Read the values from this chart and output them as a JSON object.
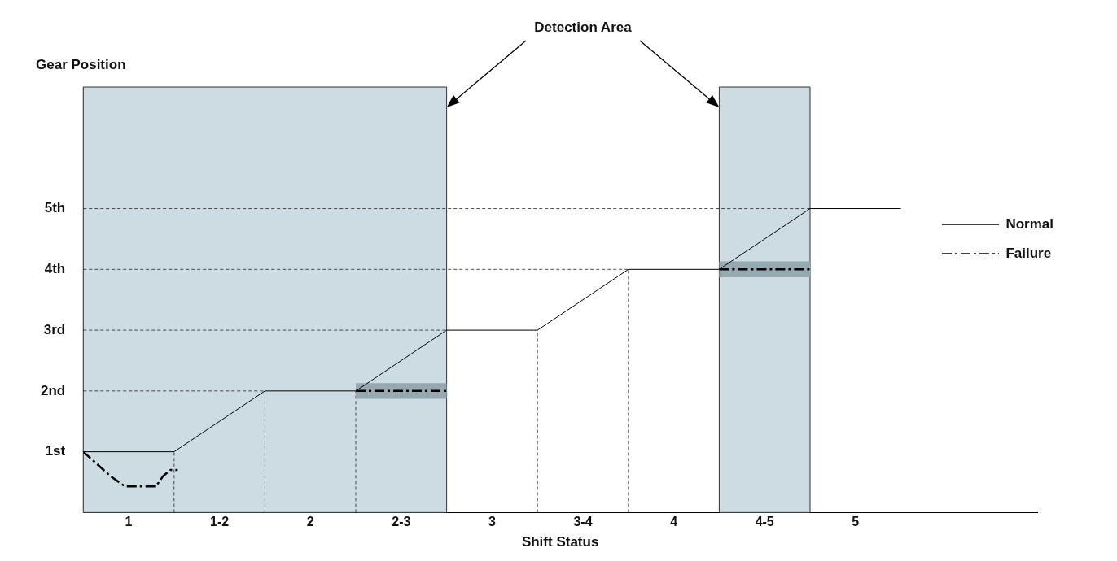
{
  "chart_data": {
    "type": "line",
    "xlabel": "Shift Status",
    "ylabel": "Gear Position",
    "annotations": [
      "Detection Area"
    ],
    "xlim": [
      0.75,
      6
    ],
    "xticks": [
      1,
      {
        "value": 1.5,
        "label": "1-2"
      },
      2,
      {
        "value": 2.5,
        "label": "2-3"
      },
      3,
      {
        "value": 3.5,
        "label": "3-4"
      },
      4,
      {
        "value": 4.5,
        "label": "4-5"
      },
      5
    ],
    "ylim": [
      0,
      7
    ],
    "yticks": [
      {
        "value": 1,
        "label": "1st"
      },
      {
        "value": 2,
        "label": "2nd"
      },
      {
        "value": 3,
        "label": "3rd"
      },
      {
        "value": 4,
        "label": "4th"
      },
      {
        "value": 5,
        "label": "5th"
      }
    ],
    "legend": "right",
    "bands": [
      {
        "axis": "x",
        "from": 0.75,
        "to": 2.75,
        "color": "#cddbe2"
      },
      {
        "axis": "x",
        "from": 4.25,
        "to": 4.75,
        "color": "#cddbe2"
      }
    ],
    "ref_lines": [
      {
        "axis": "y",
        "value": 2,
        "line_style": "dashed"
      },
      {
        "axis": "y",
        "value": 3,
        "line_style": "dashed"
      },
      {
        "axis": "y",
        "value": 4,
        "line_style": "dashed"
      },
      {
        "axis": "y",
        "value": 5,
        "line_style": "dashed"
      },
      {
        "axis": "x",
        "value": 1.25,
        "line_style": "dashed"
      },
      {
        "axis": "x",
        "value": 1.75,
        "line_style": "dashed"
      },
      {
        "axis": "x",
        "value": 2.25,
        "line_style": "dashed"
      },
      {
        "axis": "x",
        "value": 3.25,
        "line_style": "dashed"
      },
      {
        "axis": "x",
        "value": 3.75,
        "line_style": "dashed"
      }
    ],
    "series": [
      {
        "name": "Normal",
        "color": "#000000",
        "line_style": "solid",
        "x": [
          0.75,
          1.25,
          1.75,
          2.25,
          2.75,
          3.25,
          3.75,
          4.25,
          4.75,
          5.25
        ],
        "values": [
          1,
          1,
          2,
          2,
          3,
          3,
          4,
          4,
          5,
          5
        ]
      },
      {
        "name": "Failure",
        "color": "#000000",
        "line_style": "dashed",
        "x": [
          0.75,
          0.9,
          0.98,
          1.15,
          1.19,
          1.23,
          1.27,
          1.75,
          2.25,
          2.75,
          3.25,
          4.25,
          4.75
        ],
        "values": [
          1,
          0.6,
          0.43,
          0.43,
          0.6,
          0.7,
          0.7,
          null,
          2,
          2,
          null,
          4,
          4
        ],
        "lower": [
          null,
          null,
          null,
          null,
          null,
          null,
          null,
          null,
          1.87,
          1.87,
          null,
          3.87,
          3.87
        ],
        "upper": [
          null,
          null,
          null,
          null,
          null,
          null,
          null,
          null,
          2.13,
          2.13,
          null,
          4.13,
          4.13
        ]
      }
    ]
  }
}
